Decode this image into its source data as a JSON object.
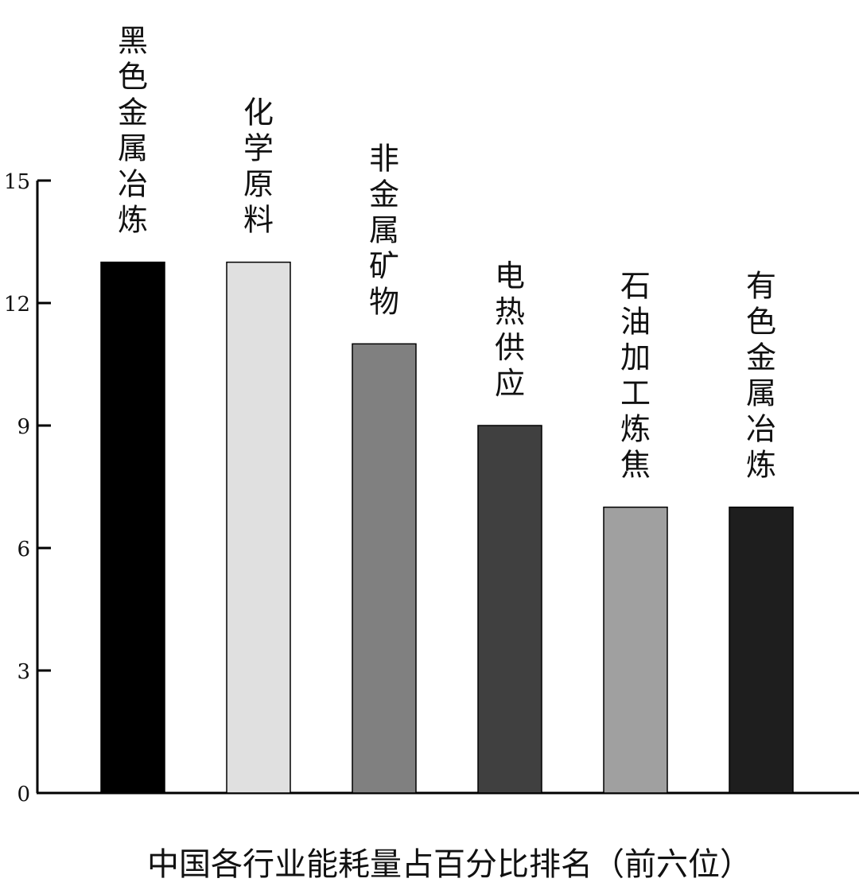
{
  "chart_data": {
    "type": "bar",
    "title": "中国各行业能耗量占百分比排名（前六位）",
    "xlabel": "",
    "ylabel": "",
    "ylim": [
      0,
      15
    ],
    "yticks": [
      0,
      3,
      6,
      9,
      12,
      15
    ],
    "grid": false,
    "legend": "none",
    "categories": [
      "黑色金属冶炼",
      "化学原料",
      "非金属矿物",
      "电热供应",
      "石油加工炼焦",
      "有色金属冶炼"
    ],
    "values": [
      13,
      13,
      11,
      9,
      7,
      7
    ],
    "colors": [
      "#000000",
      "#e0e0e0",
      "#808080",
      "#404040",
      "#a0a0a0",
      "#1e1e1e"
    ]
  }
}
